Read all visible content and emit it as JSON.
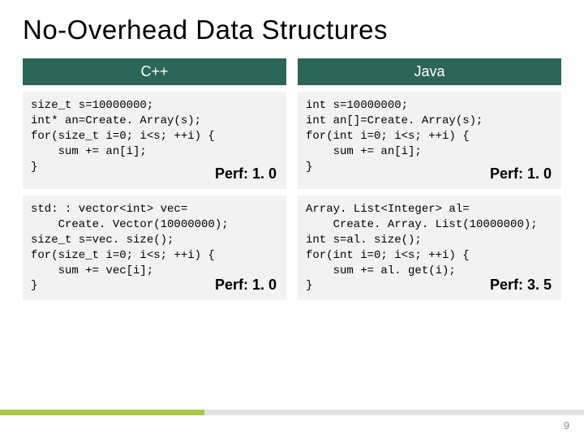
{
  "title": "No-Overhead Data Structures",
  "columns": {
    "left": "C++",
    "right": "Java"
  },
  "cells": {
    "cpp_array": {
      "code": "size_t s=10000000;\nint* an=Create. Array(s);\nfor(size_t i=0; i<s; ++i) {\n    sum += an[i];\n}",
      "perf": "Perf: 1. 0"
    },
    "java_array": {
      "code": "int s=10000000;\nint an[]=Create. Array(s);\nfor(int i=0; i<s; ++i) {\n    sum += an[i];\n}",
      "perf": "Perf: 1. 0"
    },
    "cpp_vector": {
      "code": "std: : vector<int> vec=\n    Create. Vector(10000000);\nsize_t s=vec. size();\nfor(size_t i=0; i<s; ++i) {\n    sum += vec[i];\n}",
      "perf": "Perf: 1. 0"
    },
    "java_list": {
      "code": "Array. List<Integer> al=\n    Create. Array. List(10000000);\nint s=al. size();\nfor(int i=0; i<s; ++i) {\n    sum += al. get(i);\n}",
      "perf": "Perf: 3. 5"
    }
  },
  "page_number": "9",
  "colors": {
    "header_bg": "#2b6658",
    "header_fg": "#ffffff",
    "cell_bg": "#f2f2f2",
    "band_accent": "#a8c94a",
    "band_rest": "#e2e2e2",
    "page_num": "#8a8a8a"
  },
  "fontsizes": {
    "title": 33,
    "header": 18,
    "code": 14,
    "perf": 18,
    "pagenum": 13
  }
}
